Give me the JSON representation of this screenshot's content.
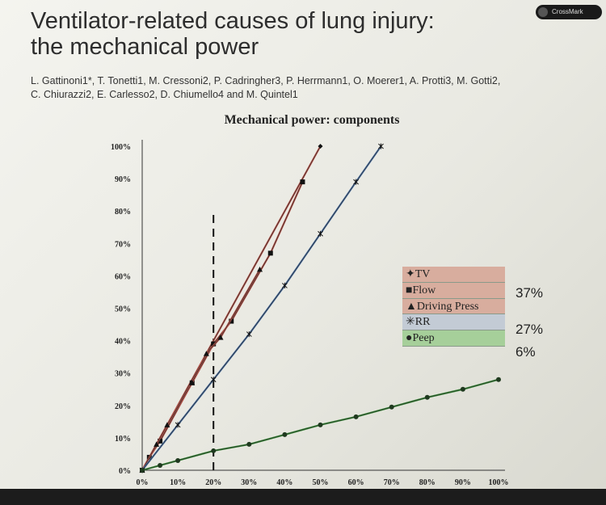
{
  "slide": {
    "title_line1": "Ventilator-related causes of lung injury:",
    "title_line2": "the mechanical power",
    "authors_line1": "L. Gattinoni1*, T. Tonetti1, M. Cressoni2, P. Cadringher3, P. Herrmann1, O. Moerer1, A. Protti3, M. Gotti2,",
    "authors_line2": "C. Chiurazzi2, E. Carlesso2, D. Chiumello4 and M. Quintel1",
    "crossmark_label": "CrossMark"
  },
  "chart_data": {
    "type": "line",
    "title": "Mechanical power: components",
    "xlim": [
      0,
      100
    ],
    "ylim": [
      0,
      100
    ],
    "x_ticks": [
      "0%",
      "10%",
      "20%",
      "30%",
      "40%",
      "50%",
      "60%",
      "70%",
      "80%",
      "90%",
      "100%"
    ],
    "y_ticks": [
      "0%",
      "10%",
      "20%",
      "30%",
      "40%",
      "50%",
      "60%",
      "70%",
      "80%",
      "90%",
      "100%"
    ],
    "reference_line_x": 20,
    "series": [
      {
        "name": "TV",
        "color": "#b5544a",
        "marker": "diamond",
        "x": [
          0,
          50
        ],
        "y": [
          0,
          100
        ]
      },
      {
        "name": "Flow",
        "color": "#b5544a",
        "marker": "square",
        "x": [
          0,
          2,
          5,
          14,
          20,
          25,
          36,
          45
        ],
        "y": [
          0,
          4,
          9,
          27,
          39,
          46,
          67,
          89
        ]
      },
      {
        "name": "Driving Press",
        "color": "#b5544a",
        "marker": "triangle",
        "x": [
          0,
          4,
          7,
          14,
          18,
          22,
          33
        ],
        "y": [
          0,
          8,
          14,
          27,
          36,
          41,
          62
        ]
      },
      {
        "name": "RR",
        "color": "#4a6fa0",
        "marker": "star",
        "x": [
          0,
          10,
          20,
          30,
          40,
          50,
          60,
          67
        ],
        "y": [
          0,
          14,
          28,
          42,
          57,
          73,
          89,
          100
        ]
      },
      {
        "name": "Peep",
        "color": "#3a8a3a",
        "marker": "circle",
        "x": [
          0,
          5,
          10,
          20,
          30,
          40,
          50,
          60,
          70,
          80,
          90,
          100
        ],
        "y": [
          0,
          1.5,
          3,
          6,
          8,
          11,
          14,
          16.5,
          19.5,
          22.5,
          25,
          28
        ]
      }
    ],
    "legend": {
      "placement": "right",
      "entries": [
        {
          "label": "TV",
          "bullet": "✦",
          "bg": "#d8ad9e"
        },
        {
          "label": "Flow",
          "bullet": "■",
          "bg": "#d8ad9e"
        },
        {
          "label": "Driving Press",
          "bullet": "▲",
          "bg": "#d8ad9e"
        },
        {
          "label": "RR",
          "bullet": "✳",
          "bg": "#c3cbd5"
        },
        {
          "label": "Peep",
          "bullet": "●",
          "bg": "#a6cf9a"
        }
      ],
      "percentages": [
        "37%",
        "27%",
        "6%"
      ]
    }
  }
}
